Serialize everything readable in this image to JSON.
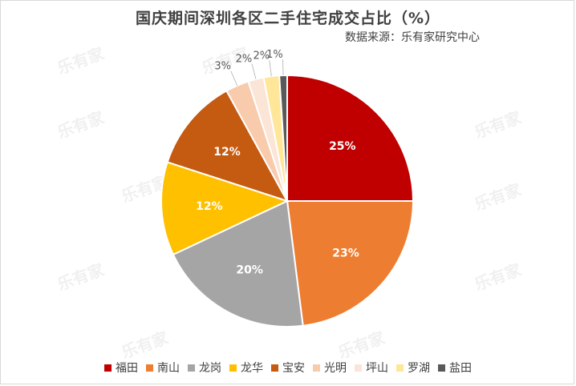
{
  "title": "国庆期间深圳各区二手住宅成交占比（%）",
  "source": "数据来源：乐有家研究中心",
  "watermark": "乐有家",
  "chart_data": {
    "type": "pie",
    "title": "国庆期间深圳各区二手住宅成交占比（%）",
    "labels": [
      "福田",
      "南山",
      "龙岗",
      "龙华",
      "宝安",
      "光明",
      "坪山",
      "罗湖",
      "盐田"
    ],
    "values": [
      25,
      23,
      20,
      12,
      12,
      3,
      2,
      2,
      1
    ],
    "colors": [
      "#c00000",
      "#ed7d31",
      "#a5a5a5",
      "#ffc000",
      "#c55a11",
      "#f8cbad",
      "#fbe5d6",
      "#ffe699",
      "#595959"
    ],
    "label_format": "{v}%",
    "legend_position": "bottom"
  }
}
